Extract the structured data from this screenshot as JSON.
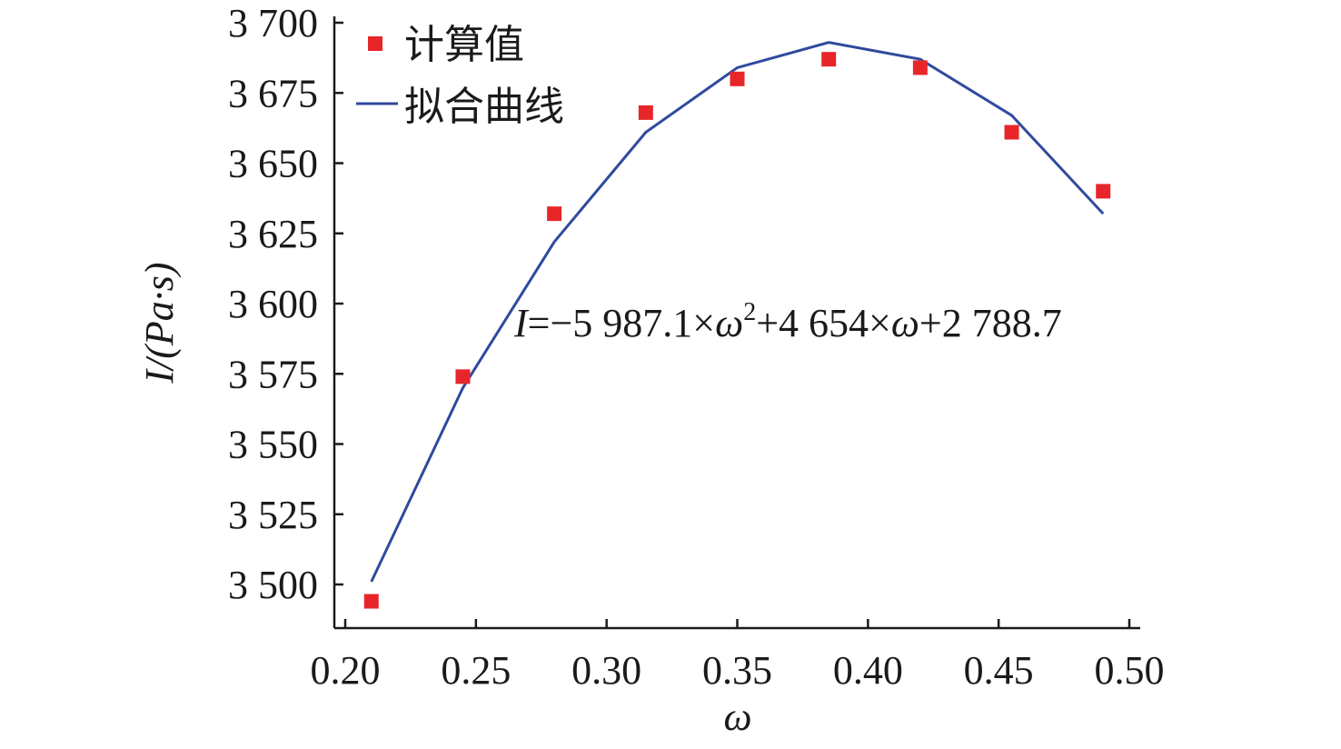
{
  "chart_data": {
    "type": "scatter",
    "title": "",
    "xlabel": "ω",
    "ylabel": "I/(Pa·s)",
    "xlim": [
      0.2,
      0.5
    ],
    "ylim": [
      3485,
      3700
    ],
    "x_ticks": [
      0.2,
      0.25,
      0.3,
      0.35,
      0.4,
      0.45,
      0.5
    ],
    "x_tick_labels": [
      "0.20",
      "0.25",
      "0.30",
      "0.35",
      "0.40",
      "0.45",
      "0.50"
    ],
    "y_ticks": [
      3500,
      3525,
      3550,
      3575,
      3600,
      3625,
      3650,
      3675,
      3700
    ],
    "y_tick_labels": [
      "3 500",
      "3 525",
      "3 550",
      "3 575",
      "3 600",
      "3 625",
      "3 650",
      "3 675",
      "3 700"
    ],
    "grid": false,
    "legend_position": "top-left",
    "series": [
      {
        "name": "计算值",
        "type": "scatter",
        "marker": "square",
        "color": "#e8262a",
        "x": [
          0.21,
          0.245,
          0.28,
          0.315,
          0.35,
          0.385,
          0.42,
          0.455,
          0.49
        ],
        "y": [
          3494,
          3574,
          3632,
          3668,
          3680,
          3687,
          3684,
          3661,
          3640
        ]
      },
      {
        "name": "拟合曲线",
        "type": "line",
        "color": "#2f4a9e",
        "x": [
          0.21,
          0.245,
          0.28,
          0.315,
          0.35,
          0.385,
          0.42,
          0.455,
          0.49
        ],
        "y": [
          3501,
          3570,
          3622,
          3661,
          3684,
          3693,
          3687,
          3667,
          3632
        ]
      }
    ],
    "annotation": {
      "italic_I": "I",
      "text_1": "=−5 987.1×",
      "omega_1": "ω",
      "superscript": "2",
      "text_2": "+4 654×",
      "omega_2": "ω",
      "text_3": "+2 788.7"
    }
  }
}
